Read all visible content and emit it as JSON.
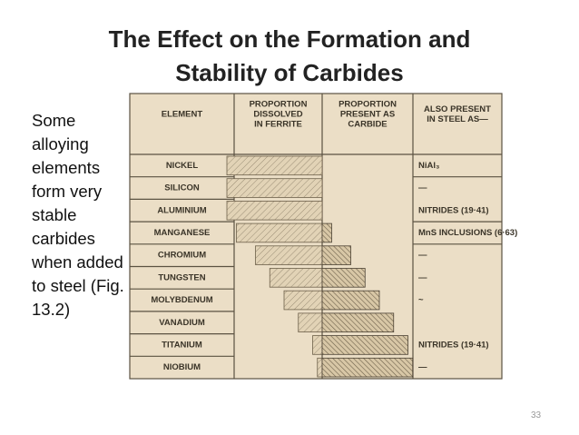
{
  "title": [
    "The Effect on the Formation and",
    "Stability of Carbides"
  ],
  "body_text": "Some alloying elements form very stable carbides when added to steel (Fig. 13.2)",
  "page_number": "33",
  "table": {
    "headers": [
      [
        "ELEMENT"
      ],
      [
        "PROPORTION",
        "DISSOLVED",
        "IN FERRITE"
      ],
      [
        "PROPORTION",
        "PRESENT AS",
        "CARBIDE"
      ],
      [
        "ALSO PRESENT",
        "IN STEEL AS—"
      ]
    ],
    "rows": [
      {
        "element": "NICKEL",
        "carbide_percent": 0,
        "also_present": "NiAl₃"
      },
      {
        "element": "SILICON",
        "carbide_percent": 0,
        "also_present": "—"
      },
      {
        "element": "ALUMINIUM",
        "carbide_percent": 0,
        "also_present": "NITRIDES (19·41)"
      },
      {
        "element": "MANGANESE",
        "carbide_percent": 10,
        "also_present": "MnS INCLUSIONS (6·63)"
      },
      {
        "element": "CHROMIUM",
        "carbide_percent": 30,
        "also_present": "—"
      },
      {
        "element": "TUNGSTEN",
        "carbide_percent": 45,
        "also_present": "—"
      },
      {
        "element": "MOLYBDENUM",
        "carbide_percent": 60,
        "also_present": "~"
      },
      {
        "element": "VANADIUM",
        "carbide_percent": 75,
        "also_present": null
      },
      {
        "element": "TITANIUM",
        "carbide_percent": 90,
        "also_present": "NITRIDES (19·41)"
      },
      {
        "element": "NIOBIUM",
        "carbide_percent": 95,
        "also_present": "—"
      }
    ]
  }
}
